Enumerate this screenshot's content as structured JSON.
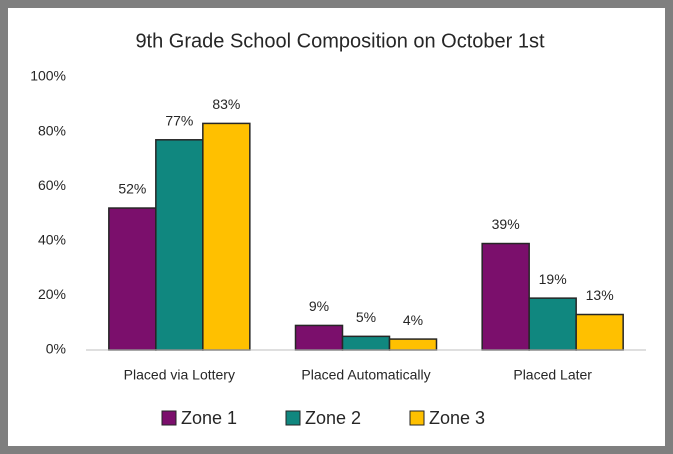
{
  "chart_data": {
    "type": "bar",
    "title": "9th Grade School Composition on October 1st",
    "categories": [
      "Placed via Lottery",
      "Placed Automatically",
      "Placed Later"
    ],
    "series": [
      {
        "name": "Zone 1",
        "color": "#7b0f6c",
        "values": [
          52,
          9,
          39
        ],
        "value_labels": [
          "52%",
          "9%",
          "39%"
        ]
      },
      {
        "name": "Zone 2",
        "color": "#10877f",
        "values": [
          77,
          5,
          19
        ],
        "value_labels": [
          "77%",
          "5%",
          "19%"
        ]
      },
      {
        "name": "Zone 3",
        "color": "#ffc000",
        "values": [
          83,
          4,
          13
        ],
        "value_labels": [
          "83%",
          "4%",
          "13%"
        ]
      }
    ],
    "ylim": [
      0,
      100
    ],
    "yticks": [
      {
        "value": 0,
        "label": "0%"
      },
      {
        "value": 20,
        "label": "20%"
      },
      {
        "value": 40,
        "label": "40%"
      },
      {
        "value": 60,
        "label": "60%"
      },
      {
        "value": 80,
        "label": "80%"
      },
      {
        "value": 100,
        "label": "100%"
      }
    ],
    "grid": false,
    "legend": "bottom"
  }
}
